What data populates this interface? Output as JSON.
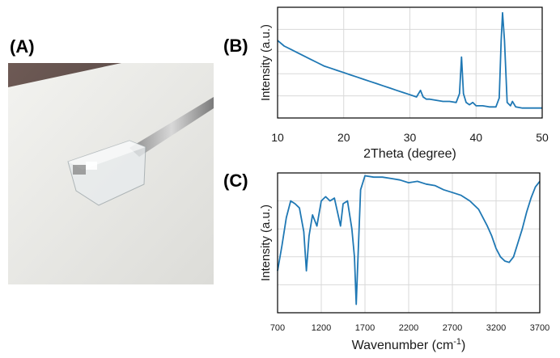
{
  "panel_labels": {
    "a": "(A)",
    "b": "(B)",
    "c": "(C)"
  },
  "colors": {
    "series": "#1f78b4",
    "grid": "#d9d9d9",
    "frame": "#000000"
  },
  "photo": {
    "description_icon": "photo-of-transparent-gel-cube-on-spatula"
  },
  "chart_data": [
    {
      "type": "line",
      "panel": "(B)",
      "xlabel": "2Theta (degree)",
      "ylabel": "Intensity (a.u.)",
      "xlim": [
        10,
        50
      ],
      "ylim": [
        0,
        100
      ],
      "xticks": [
        "10",
        "20",
        "30",
        "40",
        "50"
      ],
      "grid": true,
      "series": [
        {
          "x": [
            10,
            11,
            12,
            13,
            14,
            15,
            16,
            17,
            18,
            19,
            20,
            21,
            22,
            23,
            24,
            25,
            26,
            27,
            28,
            29,
            30,
            31,
            31.6,
            32,
            32.5,
            33,
            34,
            35,
            36,
            37,
            37.5,
            37.8,
            38.1,
            38.5,
            39,
            39.5,
            40,
            41,
            42,
            43,
            43.5,
            43.8,
            44,
            44.3,
            44.7,
            45.2,
            45.5,
            46,
            47,
            48,
            49,
            50
          ],
          "y": [
            70,
            65,
            62,
            59,
            56,
            53,
            50,
            47,
            45,
            43,
            41,
            39,
            37,
            35,
            33,
            31,
            29,
            27,
            25,
            23,
            21,
            19,
            25,
            19,
            17,
            17,
            16,
            15,
            15,
            14,
            22,
            55,
            22,
            14,
            12,
            14,
            11,
            11,
            10,
            10,
            18,
            70,
            95,
            70,
            14,
            11,
            15,
            10,
            9,
            9,
            9,
            9
          ]
        }
      ]
    },
    {
      "type": "line",
      "panel": "(C)",
      "xlabel": "Wavenumber (cm-1)",
      "ylabel": "Intensity (a.u.)",
      "xlim": [
        700,
        3700
      ],
      "ylim": [
        0,
        100
      ],
      "xticks": [
        "700",
        "1200",
        "1700",
        "2200",
        "2700",
        "3200",
        "3700"
      ],
      "grid": true,
      "series": [
        {
          "x": [
            700,
            750,
            800,
            850,
            900,
            950,
            1000,
            1030,
            1060,
            1100,
            1150,
            1200,
            1250,
            1300,
            1350,
            1400,
            1420,
            1450,
            1500,
            1550,
            1580,
            1600,
            1620,
            1650,
            1700,
            1800,
            1900,
            2000,
            2100,
            2200,
            2300,
            2400,
            2500,
            2600,
            2700,
            2800,
            2900,
            3000,
            3100,
            3150,
            3200,
            3250,
            3300,
            3350,
            3400,
            3450,
            3500,
            3550,
            3600,
            3650,
            3700
          ],
          "y": [
            30,
            48,
            68,
            80,
            78,
            75,
            58,
            30,
            55,
            70,
            62,
            80,
            83,
            80,
            82,
            68,
            62,
            78,
            80,
            60,
            40,
            6,
            40,
            88,
            98,
            97,
            97,
            96,
            95,
            93,
            94,
            92,
            91,
            88,
            86,
            84,
            80,
            74,
            62,
            55,
            46,
            40,
            37,
            36,
            40,
            50,
            60,
            72,
            82,
            90,
            94
          ]
        }
      ]
    }
  ]
}
